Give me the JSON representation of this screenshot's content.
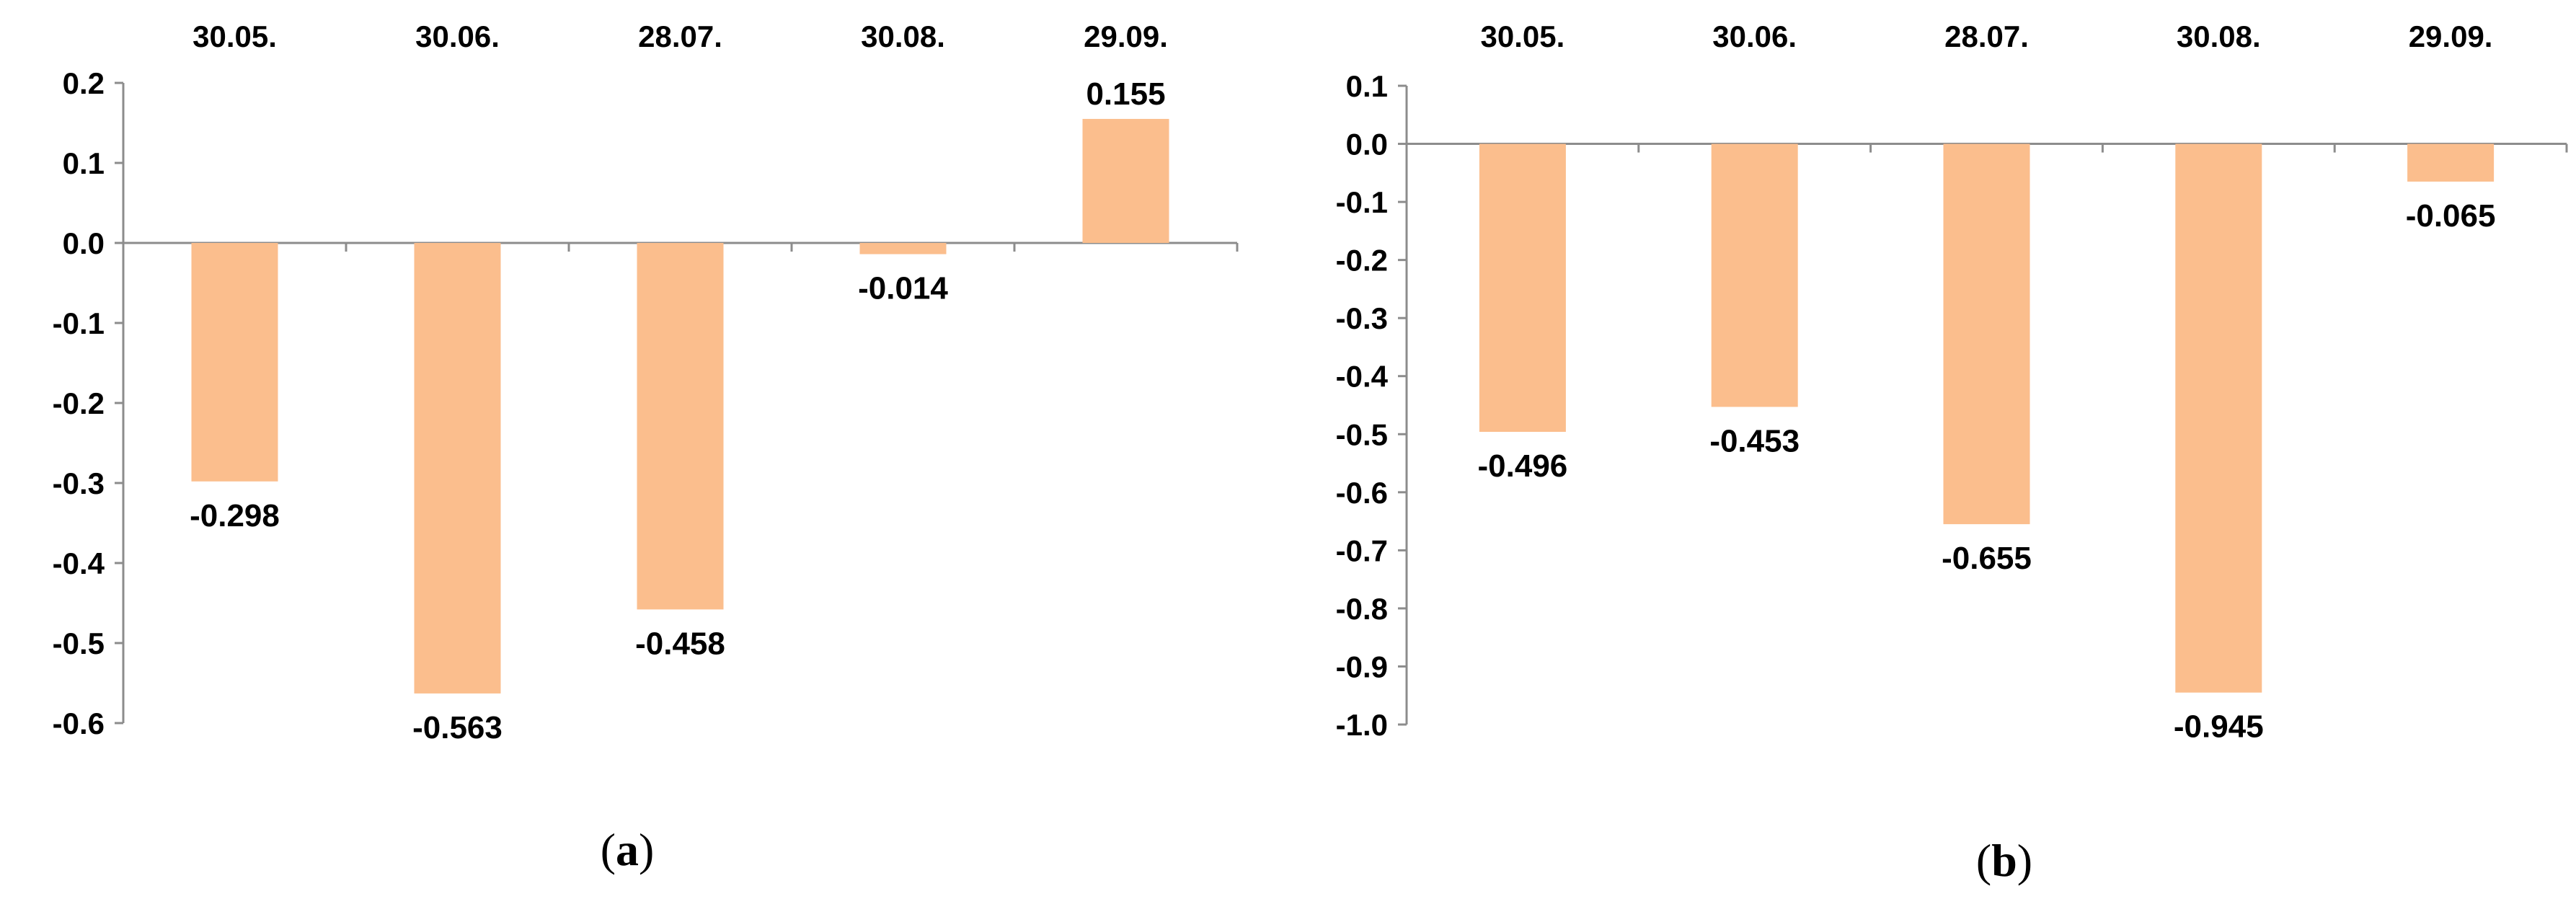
{
  "colors": {
    "bar": "#fbbe8d",
    "axis": "#8c8c8c"
  },
  "chart_data": [
    {
      "type": "bar",
      "panel_label": "a",
      "categories": [
        "30.05.",
        "30.06.",
        "28.07.",
        "30.08.",
        "29.09."
      ],
      "values": [
        -0.298,
        -0.563,
        -0.458,
        -0.014,
        0.155
      ],
      "value_labels": [
        "-0.298",
        "-0.563",
        "-0.458",
        "-0.014",
        "0.155"
      ],
      "yticks": [
        "0.2",
        "0.1",
        "0.0",
        "-0.1",
        "-0.2",
        "-0.3",
        "-0.4",
        "-0.5",
        "-0.6"
      ],
      "ylim": [
        -0.6,
        0.2
      ],
      "category_axis_position": "top",
      "grid": false,
      "legend": "none"
    },
    {
      "type": "bar",
      "panel_label": "b",
      "categories": [
        "30.05.",
        "30.06.",
        "28.07.",
        "30.08.",
        "29.09."
      ],
      "values": [
        -0.496,
        -0.453,
        -0.655,
        -0.945,
        -0.065
      ],
      "value_labels": [
        "-0.496",
        "-0.453",
        "-0.655",
        "-0.945",
        "-0.065"
      ],
      "yticks": [
        "0.1",
        "0.0",
        "-0.1",
        "-0.2",
        "-0.3",
        "-0.4",
        "-0.5",
        "-0.6",
        "-0.7",
        "-0.8",
        "-0.9",
        "-1.0"
      ],
      "ylim": [
        -1.0,
        0.1
      ],
      "category_axis_position": "top",
      "grid": false,
      "legend": "none"
    }
  ]
}
